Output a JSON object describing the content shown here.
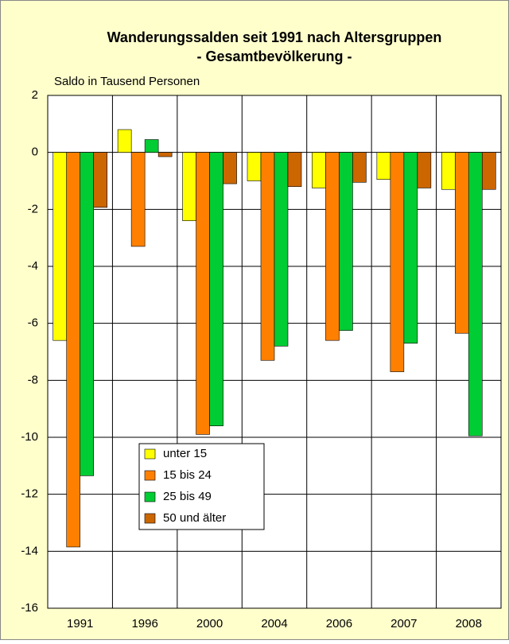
{
  "chart_data": {
    "type": "bar",
    "title": "Wanderungssalden seit 1991 nach Altersgruppen",
    "subtitle": "- Gesamtbevölkerung -",
    "y_label": "Saldo in Tausend Personen",
    "categories": [
      "1991",
      "1996",
      "2000",
      "2004",
      "2006",
      "2007",
      "2008"
    ],
    "series": [
      {
        "name": "unter 15",
        "color": "#ffff00",
        "values": [
          -6.6,
          0.8,
          -2.4,
          -1.0,
          -1.25,
          -0.95,
          -1.3
        ]
      },
      {
        "name": "15 bis 24",
        "color": "#ff8000",
        "values": [
          -13.85,
          -3.3,
          -9.9,
          -7.3,
          -6.6,
          -7.7,
          -6.35
        ]
      },
      {
        "name": "25 bis 49",
        "color": "#00cc33",
        "values": [
          -11.35,
          0.45,
          -9.6,
          -6.8,
          -6.25,
          -6.7,
          -9.95
        ]
      },
      {
        "name": "50 und älter",
        "color": "#cc6600",
        "values": [
          -1.93,
          -0.15,
          -1.1,
          -1.2,
          -1.05,
          -1.25,
          -1.3
        ]
      }
    ],
    "ylim": [
      -16,
      2
    ],
    "yticks": [
      2,
      0,
      -2,
      -4,
      -6,
      -8,
      -10,
      -12,
      -14,
      -16
    ],
    "grid": true
  }
}
